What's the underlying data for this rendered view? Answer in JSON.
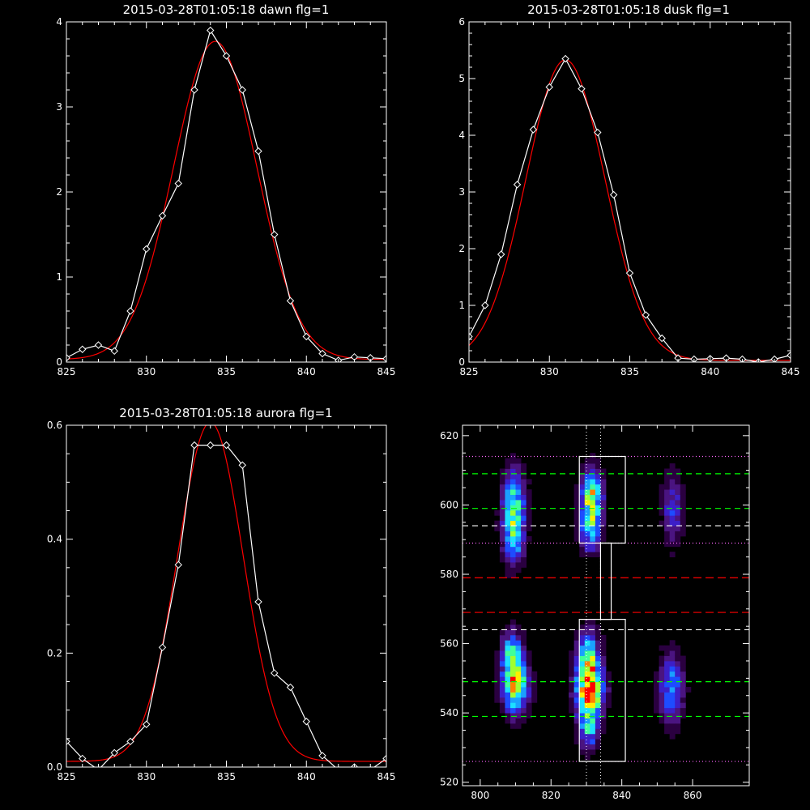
{
  "colors": {
    "background": "#000000",
    "axes": "#ffffff",
    "data_line": "#ffffff",
    "fit_line": "#ff0000",
    "guide_green": "#00ff00",
    "guide_red": "#ff0000",
    "guide_white": "#ffffff",
    "guide_pink": "#ff66ff",
    "colormap": [
      "#000000",
      "#2a0040",
      "#4a1480",
      "#3c1fc8",
      "#1e4cff",
      "#1aa0ff",
      "#1ce0ff",
      "#40ff9a",
      "#a0ff30",
      "#ffee00",
      "#ff8000",
      "#ff0000"
    ]
  },
  "chart_data": [
    {
      "type": "line",
      "title": "2015-03-28T01:05:18 dawn flg=1",
      "xlabel": "",
      "ylabel": "",
      "xlim": [
        825,
        845
      ],
      "ylim": [
        0,
        4
      ],
      "x_ticks": [
        825,
        830,
        835,
        840,
        845
      ],
      "y_ticks": [
        0,
        1,
        2,
        3,
        4
      ],
      "series": [
        {
          "style": "measured",
          "marker": "diamond",
          "x": [
            825,
            826,
            827,
            828,
            829,
            830,
            831,
            832,
            833,
            834,
            835,
            836,
            837,
            838,
            839,
            840,
            841,
            842,
            843,
            844,
            845
          ],
          "y": [
            0.05,
            0.15,
            0.2,
            0.13,
            0.6,
            1.33,
            1.72,
            2.1,
            3.2,
            3.9,
            3.6,
            3.2,
            2.48,
            1.5,
            0.72,
            0.3,
            0.1,
            0.02,
            0.06,
            0.05,
            0.04
          ]
        },
        {
          "style": "fit",
          "type": "gaussian",
          "amplitude": 3.74,
          "center": 834.3,
          "sigma": 2.6,
          "offset": 0.03
        }
      ]
    },
    {
      "type": "line",
      "title": "2015-03-28T01:05:18 dusk flg=1",
      "xlabel": "",
      "ylabel": "",
      "xlim": [
        825,
        845
      ],
      "ylim": [
        0,
        6
      ],
      "x_ticks": [
        825,
        830,
        835,
        840,
        845
      ],
      "y_ticks": [
        0,
        1,
        2,
        3,
        4,
        5,
        6
      ],
      "series": [
        {
          "style": "measured",
          "marker": "diamond",
          "x": [
            825,
            826,
            827,
            828,
            829,
            830,
            831,
            832,
            833,
            834,
            835,
            836,
            837,
            838,
            839,
            840,
            841,
            842,
            843,
            844,
            845
          ],
          "y": [
            0.45,
            1.0,
            1.9,
            3.13,
            4.1,
            4.85,
            5.35,
            4.82,
            4.05,
            2.95,
            1.57,
            0.83,
            0.42,
            0.07,
            0.05,
            0.06,
            0.07,
            0.05,
            0.0,
            0.05,
            0.12
          ]
        },
        {
          "style": "fit",
          "type": "gaussian",
          "amplitude": 5.3,
          "center": 831.0,
          "sigma": 2.45,
          "offset": 0.03
        }
      ]
    },
    {
      "type": "line",
      "title": "2015-03-28T01:05:18 aurora flg=1",
      "xlabel": "",
      "ylabel": "",
      "xlim": [
        825,
        845
      ],
      "ylim": [
        0,
        0.6
      ],
      "x_ticks": [
        825,
        830,
        835,
        840,
        845
      ],
      "y_ticks": [
        0.0,
        0.2,
        0.4,
        0.6
      ],
      "y_tick_labels": [
        "0.0",
        "0.2",
        "0.4",
        "0.6"
      ],
      "series": [
        {
          "style": "measured",
          "marker": "diamond",
          "x": [
            825,
            826,
            827,
            828,
            829,
            830,
            831,
            832,
            833,
            834,
            835,
            836,
            837,
            838,
            839,
            840,
            841,
            842,
            843,
            844,
            845
          ],
          "y": [
            0.045,
            0.015,
            -0.005,
            0.025,
            0.045,
            0.075,
            0.21,
            0.355,
            0.565,
            0.565,
            0.565,
            0.53,
            0.29,
            0.165,
            0.14,
            0.08,
            0.02,
            -0.005,
            0.0,
            -0.005,
            0.015
          ]
        },
        {
          "style": "fit",
          "type": "gaussian",
          "amplitude": 0.595,
          "center": 834.0,
          "sigma": 2.05,
          "offset": 0.01
        }
      ]
    },
    {
      "type": "heatmap",
      "title": "",
      "xlabel": "",
      "ylabel": "",
      "xlim": [
        795,
        876
      ],
      "ylim": [
        519,
        623
      ],
      "x_ticks": [
        800,
        820,
        840,
        860
      ],
      "y_ticks": [
        520,
        540,
        560,
        580,
        600,
        620
      ],
      "blobs": [
        {
          "x": 809.5,
          "y": 600.5,
          "sx": 2.2,
          "sy": 6.5,
          "amp": 0.55
        },
        {
          "x": 809.5,
          "y": 590.0,
          "sx": 2.0,
          "sy": 5.5,
          "amp": 0.42
        },
        {
          "x": 810.0,
          "y": 548.0,
          "sx": 2.4,
          "sy": 5.5,
          "amp": 0.78
        },
        {
          "x": 809.0,
          "y": 557.0,
          "sx": 2.0,
          "sy": 4.5,
          "amp": 0.5
        },
        {
          "x": 831.5,
          "y": 603.0,
          "sx": 2.0,
          "sy": 5.0,
          "amp": 0.74
        },
        {
          "x": 831.0,
          "y": 593.0,
          "sx": 2.0,
          "sy": 4.5,
          "amp": 0.5
        },
        {
          "x": 831.0,
          "y": 546.0,
          "sx": 2.5,
          "sy": 5.0,
          "amp": 1.0
        },
        {
          "x": 830.5,
          "y": 556.0,
          "sx": 2.2,
          "sy": 5.0,
          "amp": 0.64
        },
        {
          "x": 830.5,
          "y": 535.0,
          "sx": 2.0,
          "sy": 4.0,
          "amp": 0.42
        },
        {
          "x": 854.5,
          "y": 599.0,
          "sx": 2.0,
          "sy": 7.0,
          "amp": 0.3
        },
        {
          "x": 854.0,
          "y": 547.0,
          "sx": 2.4,
          "sy": 7.0,
          "amp": 0.42
        }
      ],
      "green_dashed_y": [
        609,
        599,
        549,
        539
      ],
      "white_dashed_y": [
        594,
        564
      ],
      "red_dashed_y": [
        579,
        569
      ],
      "pink_dotted_y": [
        614,
        589,
        526
      ],
      "white_dotted_x": [
        830,
        834
      ],
      "boxes": [
        {
          "x0": 828,
          "x1": 841,
          "y0": 589,
          "y1": 614
        },
        {
          "x0": 828,
          "x1": 841,
          "y0": 526,
          "y1": 567
        }
      ],
      "connector": {
        "x0": 834,
        "x1": 837,
        "y0": 567,
        "y1": 589
      }
    }
  ]
}
